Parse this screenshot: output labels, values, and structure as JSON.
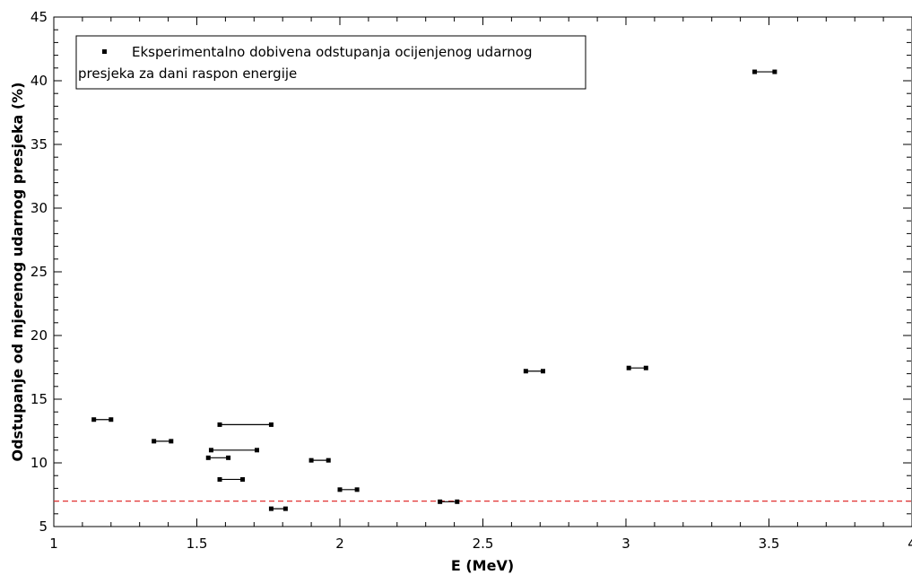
{
  "chart_data": {
    "type": "scatter",
    "xlabel": "E (MeV)",
    "ylabel": "Odstupanje od mjerenog udarnog presjeka (%)",
    "xlim": [
      1,
      4
    ],
    "ylim": [
      5,
      45
    ],
    "xticks": [
      "1",
      "1.5",
      "2",
      "2.5",
      "3",
      "3.5",
      "4"
    ],
    "yticks": [
      "5",
      "10",
      "15",
      "20",
      "25",
      "30",
      "35",
      "40",
      "45"
    ],
    "grid": false,
    "legend": {
      "placement": "top-left",
      "line1": "Eksperimentalno dobivena odstupanja ocijenjenog udarnog",
      "line2": "presjeka za dani raspon energije"
    },
    "reference_line": {
      "y": 7,
      "color": "#e03030",
      "style": "dashed"
    },
    "marker_color": "#000000",
    "series": [
      {
        "points": [
          {
            "x_min": 1.14,
            "x_max": 1.2,
            "y": 13.4
          },
          {
            "x_min": 1.35,
            "x_max": 1.41,
            "y": 11.7
          },
          {
            "x_min": 1.58,
            "x_max": 1.76,
            "y": 13.0
          },
          {
            "x_min": 1.55,
            "x_max": 1.71,
            "y": 11.0
          },
          {
            "x_min": 1.54,
            "x_max": 1.61,
            "y": 10.4
          },
          {
            "x_min": 1.58,
            "x_max": 1.66,
            "y": 8.7
          },
          {
            "x_min": 1.76,
            "x_max": 1.81,
            "y": 6.4
          },
          {
            "x_min": 1.9,
            "x_max": 1.96,
            "y": 10.2
          },
          {
            "x_min": 2.0,
            "x_max": 2.06,
            "y": 7.9
          },
          {
            "x_min": 2.35,
            "x_max": 2.41,
            "y": 6.95
          },
          {
            "x_min": 2.65,
            "x_max": 2.71,
            "y": 17.2
          },
          {
            "x_min": 3.01,
            "x_max": 3.07,
            "y": 17.45
          },
          {
            "x_min": 3.45,
            "x_max": 3.52,
            "y": 40.7
          }
        ]
      }
    ]
  }
}
